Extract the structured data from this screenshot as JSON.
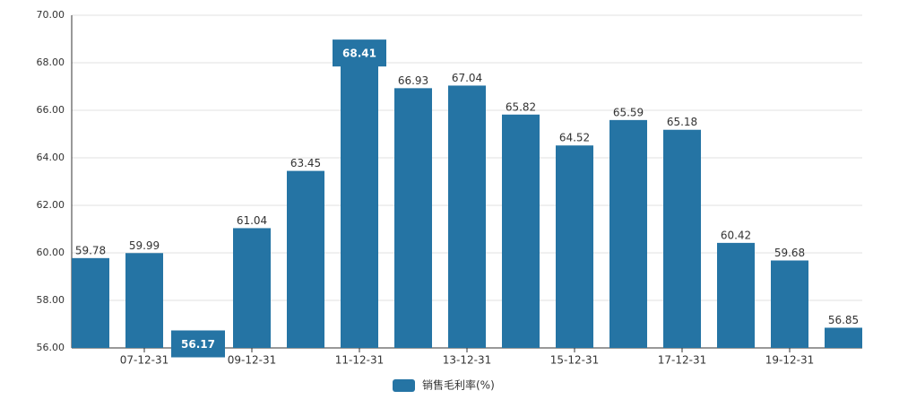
{
  "chart_data": {
    "type": "bar",
    "categories": [
      null,
      "07-12-31",
      null,
      "09-12-31",
      null,
      "11-12-31",
      null,
      "13-12-31",
      null,
      "15-12-31",
      null,
      "17-12-31",
      null,
      "19-12-31",
      null
    ],
    "series": [
      {
        "name": "销售毛利率(%)",
        "color": "#2574a4",
        "values": [
          59.78,
          59.99,
          56.17,
          61.04,
          63.45,
          68.41,
          66.93,
          67.04,
          65.82,
          64.52,
          65.59,
          65.18,
          60.42,
          59.68,
          56.85
        ]
      }
    ],
    "ylim": [
      56,
      70
    ],
    "yticks": [
      {
        "value": 56,
        "label": "56.00"
      },
      {
        "value": 58,
        "label": "58.00"
      },
      {
        "value": 60,
        "label": "60.00"
      },
      {
        "value": 62,
        "label": "62.00"
      },
      {
        "value": 64,
        "label": "64.00"
      },
      {
        "value": 66,
        "label": "66.00"
      },
      {
        "value": 68,
        "label": "68.00"
      },
      {
        "value": 70,
        "label": "70.00"
      }
    ],
    "grid": true,
    "legend": "bottom"
  }
}
